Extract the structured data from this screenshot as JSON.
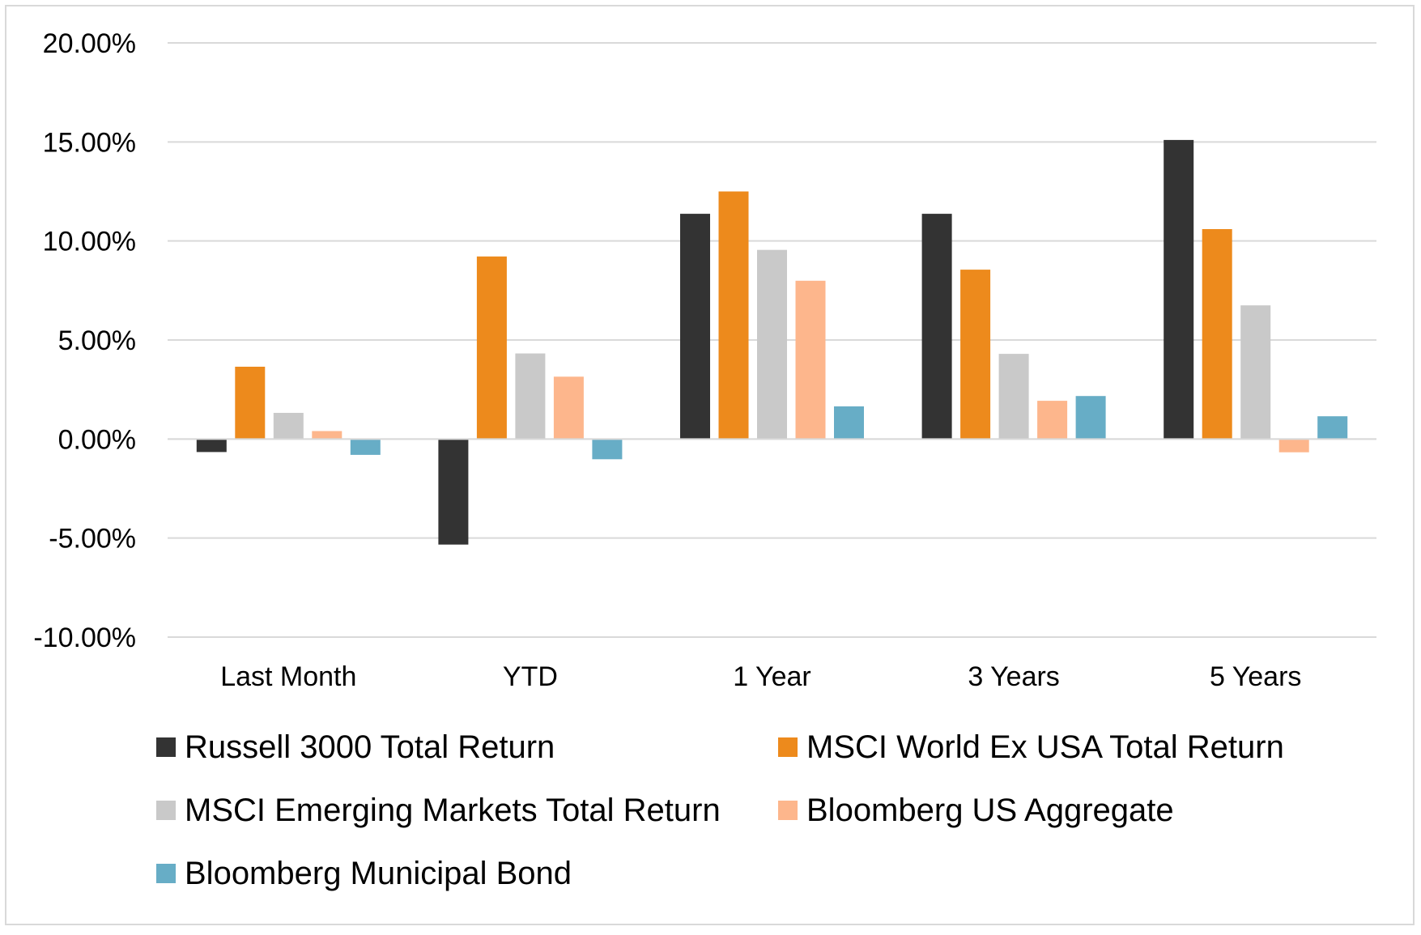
{
  "chart_data": {
    "type": "bar",
    "categories": [
      "Last Month",
      "YTD",
      "1 Year",
      "3 Years",
      "5 Years"
    ],
    "series": [
      {
        "name": "Russell 3000 Total Return",
        "color": "#333333",
        "values": [
          -0.66,
          -5.33,
          11.37,
          11.37,
          15.1
        ]
      },
      {
        "name": "MSCI World Ex USA Total Return",
        "color": "#ed8a1c",
        "values": [
          3.65,
          9.22,
          12.5,
          8.55,
          10.6
        ]
      },
      {
        "name": "MSCI Emerging Markets Total Return",
        "color": "#c9c9c9",
        "values": [
          1.32,
          4.32,
          9.55,
          4.3,
          6.75
        ]
      },
      {
        "name": "Bloomberg US Aggregate",
        "color": "#fdb68c",
        "values": [
          0.4,
          3.15,
          7.99,
          1.93,
          -0.67
        ]
      },
      {
        "name": "Bloomberg Municipal Bond",
        "color": "#67adc6",
        "values": [
          -0.8,
          -1.02,
          1.65,
          2.17,
          1.15
        ]
      }
    ],
    "ylim": [
      -10,
      20
    ],
    "yticks": [
      20,
      15,
      10,
      5,
      0,
      -5,
      -10
    ],
    "ytick_labels": [
      "20.00%",
      "15.00%",
      "10.00%",
      "5.00%",
      "0.00%",
      "-5.00%",
      "-10.00%"
    ],
    "grid": true,
    "legend_position": "bottom"
  }
}
